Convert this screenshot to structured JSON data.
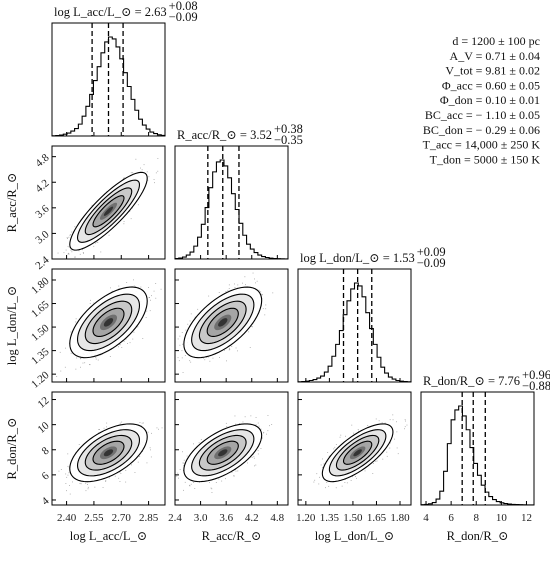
{
  "chart_data": {
    "type": "corner",
    "parameters": [
      {
        "key": "L_acc",
        "axis_label": "log L_acc/L_⊙",
        "title": "log L_acc/L_⊙ = 2.63",
        "plus": "+0.08",
        "minus": "−0.09",
        "median": 2.63,
        "q16": 2.54,
        "q84": 2.71,
        "range": [
          2.32,
          2.94
        ],
        "ticks": [
          2.4,
          2.55,
          2.7,
          2.85
        ],
        "tick_labels": [
          "2.40",
          "2.55",
          "2.70",
          "2.85"
        ],
        "hist": [
          0.002,
          0.005,
          0.01,
          0.018,
          0.03,
          0.05,
          0.075,
          0.12,
          0.2,
          0.3,
          0.42,
          0.56,
          0.7,
          0.84,
          0.95,
          1.0,
          0.98,
          0.9,
          0.78,
          0.64,
          0.5,
          0.37,
          0.26,
          0.17,
          0.11,
          0.07,
          0.04,
          0.025,
          0.012,
          0.006
        ]
      },
      {
        "key": "R_acc",
        "axis_label": "R_acc/R_⊙",
        "title": "R_acc/R_⊙ = 3.52",
        "plus": "+0.38",
        "minus": "−0.35",
        "median": 3.52,
        "q16": 3.17,
        "q84": 3.9,
        "range": [
          2.4,
          5.05
        ],
        "ticks": [
          2.4,
          3.0,
          3.6,
          4.2,
          4.8
        ],
        "tick_labels": [
          "2.4",
          "3.0",
          "3.6",
          "4.2",
          "4.8"
        ],
        "hist": [
          0.005,
          0.01,
          0.02,
          0.04,
          0.07,
          0.13,
          0.22,
          0.35,
          0.52,
          0.72,
          0.88,
          0.98,
          1.0,
          0.94,
          0.82,
          0.66,
          0.5,
          0.36,
          0.24,
          0.15,
          0.1,
          0.065,
          0.04,
          0.025,
          0.015,
          0.008,
          0.005,
          0.003,
          0.002,
          0.001
        ]
      },
      {
        "key": "L_don",
        "axis_label": "log L_don/L_⊙",
        "title": "log L_don/L_⊙ = 1.53",
        "plus": "+0.09",
        "minus": "−0.09",
        "median": 1.53,
        "q16": 1.44,
        "q84": 1.62,
        "range": [
          1.15,
          1.87
        ],
        "ticks": [
          1.2,
          1.35,
          1.5,
          1.65,
          1.8
        ],
        "tick_labels": [
          "1.20",
          "1.35",
          "1.50",
          "1.65",
          "1.80"
        ],
        "hist": [
          0.002,
          0.004,
          0.008,
          0.015,
          0.025,
          0.04,
          0.06,
          0.1,
          0.16,
          0.26,
          0.38,
          0.52,
          0.68,
          0.82,
          0.94,
          1.0,
          0.97,
          0.86,
          0.7,
          0.54,
          0.38,
          0.25,
          0.15,
          0.09,
          0.05,
          0.03,
          0.015,
          0.008,
          0.004,
          0.002
        ]
      },
      {
        "key": "R_don",
        "axis_label": "R_don/R_⊙",
        "title": "R_don/R_⊙ = 7.76",
        "plus": "+0.96",
        "minus": "−0.88",
        "median": 7.76,
        "q16": 6.88,
        "q84": 8.72,
        "range": [
          3.6,
          12.6
        ],
        "ticks": [
          4,
          6,
          8,
          10,
          12
        ],
        "tick_labels": [
          "4",
          "6",
          "8",
          "10",
          "12"
        ],
        "hist": [
          0.003,
          0.006,
          0.012,
          0.025,
          0.06,
          0.14,
          0.34,
          0.62,
          0.86,
          0.96,
          1.0,
          0.9,
          0.76,
          0.58,
          0.42,
          0.3,
          0.2,
          0.13,
          0.085,
          0.055,
          0.035,
          0.022,
          0.014,
          0.009,
          0.006,
          0.004,
          0.003,
          0.002,
          0.001,
          0.001
        ]
      }
    ],
    "correlations": [
      [
        1,
        0.85,
        0.6,
        0.55
      ],
      [
        0.85,
        1,
        0.62,
        0.6
      ],
      [
        0.6,
        0.62,
        1,
        0.72
      ],
      [
        0.55,
        0.6,
        0.72,
        1
      ]
    ],
    "quantile_lines": [
      0.16,
      0.5,
      0.84
    ],
    "fixed_parameters": [
      "d = 1200 ± 100 pc",
      "A_V = 0.71 ± 0.04",
      "V_tot = 9.81 ± 0.02",
      "Φ_acc = 0.60 ± 0.05",
      "Φ_don = 0.10 ± 0.01",
      "BC_acc = − 1.10 ± 0.05",
      "BC_don = − 0.29 ± 0.06",
      "T_acc = 14,000 ± 250 K",
      "T_don = 5000 ± 150 K"
    ]
  }
}
